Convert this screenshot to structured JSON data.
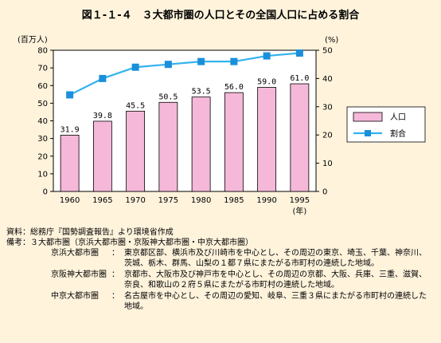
{
  "title": "図１-１-４　３大都市圏の人口とその全国人口に占める割合",
  "chart_data": {
    "type": "bar",
    "categories": [
      "1960",
      "1965",
      "1970",
      "1975",
      "1980",
      "1985",
      "1990",
      "1995"
    ],
    "x_unit": "(年)",
    "series": [
      {
        "name": "人口",
        "type": "bar",
        "axis": "left",
        "values": [
          31.9,
          39.8,
          45.5,
          50.5,
          53.5,
          56.0,
          59.0,
          61.0
        ],
        "labels": [
          "31.9",
          "39.8",
          "45.5",
          "50.5",
          "53.5",
          "56.0",
          "59.0",
          "61.0"
        ],
        "color": "#f5b8d8"
      },
      {
        "name": "割合",
        "type": "line",
        "axis": "right",
        "values": [
          34.2,
          40.0,
          44.0,
          45.0,
          46.0,
          46.0,
          48.0,
          49.0
        ],
        "color": "#33b2ee"
      }
    ],
    "y_left": {
      "unit": "(百万人)",
      "ylim": [
        0,
        80
      ],
      "ticks": [
        0,
        10,
        20,
        30,
        40,
        50,
        60,
        70,
        80
      ]
    },
    "y_right": {
      "unit": "(%)",
      "ylim": [
        0,
        50
      ],
      "ticks": [
        0,
        10,
        20,
        30,
        40,
        50
      ]
    },
    "grid": false,
    "legend_position": "right"
  },
  "notes": {
    "source": "資料：総務庁『国勢調査報告』より環境省作成",
    "remarks": "備考：３大都市圏（京浜大都市圏・京阪神大都市圏・中京大都市圏）",
    "definitions": [
      {
        "term": "京浜大都市圏",
        "text": "東京都区部、横浜市及び川崎市を中心とし、その周辺の東京、埼玉、千葉、神奈川、茨城、栃木、群馬、山梨の１都７県にまたがる市町村の連続した地域。"
      },
      {
        "term": "京阪神大都市圏",
        "text": "京都市、大阪市及び神戸市を中心とし、その周辺の京都、大阪、兵庫、三重、滋賀、奈良、和歌山の２府５県にまたがる市町村の連続した地域。"
      },
      {
        "term": "中京大都市圏",
        "text": "名古屋市を中心とし、その周辺の愛知、岐阜、三重３県にまたがる市町村の連続した地域。"
      }
    ]
  }
}
